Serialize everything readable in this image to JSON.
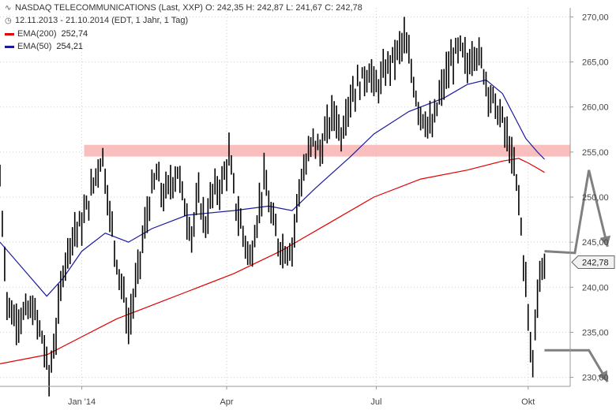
{
  "header": {
    "title_line": "NASDAQ TELECOMMUNICATIONS (Last, XXP)  O: 242,35  H: 242,87  L: 241,67  C: 242,78",
    "range_line": "12.11.2013 - 21.10.2014 (EDT, 1 Jahr, 1 Tag)",
    "ema200_label": "EMA(200)",
    "ema200_value": "252,74",
    "ema50_label": "EMA(50)",
    "ema50_value": "254,21",
    "chart_icon": "line-chart-icon",
    "clock_icon": "clock-icon"
  },
  "colors": {
    "ema200": "#e00000",
    "ema50": "#1a1aa0",
    "resistance_band": "#f8b4b4",
    "arrows": "#808080",
    "price": "#000000",
    "grid": "#cccccc"
  },
  "chart_data": {
    "type": "line",
    "title": "NASDAQ TELECOMMUNICATIONS (Last, XXP)",
    "ylim": [
      229,
      271
    ],
    "y_ticks": [
      230,
      235,
      240,
      245,
      250,
      255,
      260,
      265,
      270
    ],
    "y_tick_labels": [
      "230,00",
      "235,00",
      "240,00",
      "245,00",
      "250,00",
      "255,00",
      "260,00",
      "265,00",
      "270,00"
    ],
    "x_ticks": [
      {
        "label": "Jan '14",
        "index": 35
      },
      {
        "label": "Apr",
        "index": 97
      },
      {
        "label": "Jul",
        "index": 161
      },
      {
        "label": "Okt",
        "index": 226
      }
    ],
    "x_count": 245,
    "last_value": 242.78,
    "last_label": "242,78",
    "price_anchors": [
      [
        0,
        252.0
      ],
      [
        3,
        238.5
      ],
      [
        6,
        236.5
      ],
      [
        10,
        237.0
      ],
      [
        14,
        237.5
      ],
      [
        18,
        234.5
      ],
      [
        21,
        230.0
      ],
      [
        24,
        235.0
      ],
      [
        27,
        242.0
      ],
      [
        31,
        246.0
      ],
      [
        35,
        247.0
      ],
      [
        39,
        250.5
      ],
      [
        42,
        253.5
      ],
      [
        44,
        254.5
      ],
      [
        47,
        248.0
      ],
      [
        50,
        243.0
      ],
      [
        53,
        239.0
      ],
      [
        55,
        235.5
      ],
      [
        58,
        240.0
      ],
      [
        61,
        245.0
      ],
      [
        64,
        249.5
      ],
      [
        67,
        252.5
      ],
      [
        70,
        250.0
      ],
      [
        73,
        251.5
      ],
      [
        76,
        253.0
      ],
      [
        79,
        249.0
      ],
      [
        82,
        246.0
      ],
      [
        85,
        250.0
      ],
      [
        88,
        247.0
      ],
      [
        91,
        250.5
      ],
      [
        95,
        251.5
      ],
      [
        98,
        254.5
      ],
      [
        101,
        249.0
      ],
      [
        104,
        246.0
      ],
      [
        107,
        243.0
      ],
      [
        110,
        247.5
      ],
      [
        113,
        252.0
      ],
      [
        116,
        248.0
      ],
      [
        119,
        245.0
      ],
      [
        122,
        244.0
      ],
      [
        125,
        244.5
      ],
      [
        128,
        251.0
      ],
      [
        131,
        253.5
      ],
      [
        134,
        256.5
      ],
      [
        137,
        255.0
      ],
      [
        140,
        257.5
      ],
      [
        143,
        259.5
      ],
      [
        146,
        257.0
      ],
      [
        149,
        260.5
      ],
      [
        152,
        262.0
      ],
      [
        155,
        263.0
      ],
      [
        158,
        264.0
      ],
      [
        161,
        262.0
      ],
      [
        164,
        263.5
      ],
      [
        167,
        265.0
      ],
      [
        170,
        266.0
      ],
      [
        173,
        267.5
      ],
      [
        176,
        264.0
      ],
      [
        179,
        260.0
      ],
      [
        182,
        258.5
      ],
      [
        185,
        257.5
      ],
      [
        188,
        261.0
      ],
      [
        191,
        263.5
      ],
      [
        194,
        265.5
      ],
      [
        197,
        266.5
      ],
      [
        200,
        264.5
      ],
      [
        203,
        266.5
      ],
      [
        206,
        265.0
      ],
      [
        209,
        262.0
      ],
      [
        212,
        260.0
      ],
      [
        215,
        258.5
      ],
      [
        218,
        255.5
      ],
      [
        220,
        253.0
      ],
      [
        222,
        250.0
      ],
      [
        223,
        246.5
      ],
      [
        224,
        243.0
      ],
      [
        225,
        240.5
      ],
      [
        226,
        237.0
      ],
      [
        227,
        233.0
      ],
      [
        228,
        232.0
      ],
      [
        229,
        236.0
      ],
      [
        230,
        239.5
      ],
      [
        231,
        241.0
      ],
      [
        232,
        242.0
      ],
      [
        233,
        242.78
      ]
    ],
    "series": [
      {
        "name": "EMA(200)",
        "color": "#e00000",
        "values": [
          [
            0,
            231.5
          ],
          [
            20,
            232.5
          ],
          [
            35,
            234.5
          ],
          [
            50,
            236.5
          ],
          [
            60,
            237.5
          ],
          [
            80,
            239.5
          ],
          [
            100,
            241.5
          ],
          [
            120,
            244.0
          ],
          [
            140,
            247.0
          ],
          [
            160,
            250.0
          ],
          [
            180,
            252.0
          ],
          [
            200,
            253.0
          ],
          [
            215,
            254.0
          ],
          [
            222,
            254.3
          ],
          [
            226,
            253.8
          ],
          [
            230,
            253.2
          ],
          [
            233,
            252.74
          ]
        ]
      },
      {
        "name": "EMA(50)",
        "color": "#1a1aa0",
        "values": [
          [
            0,
            245.0
          ],
          [
            10,
            242.0
          ],
          [
            20,
            239.0
          ],
          [
            27,
            241.0
          ],
          [
            35,
            244.0
          ],
          [
            45,
            246.0
          ],
          [
            55,
            245.0
          ],
          [
            65,
            246.5
          ],
          [
            80,
            248.0
          ],
          [
            100,
            248.5
          ],
          [
            115,
            249.0
          ],
          [
            125,
            248.5
          ],
          [
            135,
            251.0
          ],
          [
            150,
            254.5
          ],
          [
            160,
            257.0
          ],
          [
            175,
            259.5
          ],
          [
            190,
            261.0
          ],
          [
            200,
            262.5
          ],
          [
            208,
            263.0
          ],
          [
            215,
            261.5
          ],
          [
            220,
            259.0
          ],
          [
            225,
            256.5
          ],
          [
            230,
            255.0
          ],
          [
            233,
            254.21
          ]
        ]
      }
    ],
    "resistance_band": [
      254.5,
      255.8
    ],
    "arrows": [
      {
        "points": [
          [
            233,
            244.0
          ],
          [
            246,
            243.8
          ],
          [
            252,
            253.0
          ],
          [
            260,
            244.5
          ]
        ]
      },
      {
        "points": [
          [
            233,
            233.0
          ],
          [
            252,
            233.0
          ],
          [
            260,
            229.5
          ]
        ]
      }
    ]
  }
}
